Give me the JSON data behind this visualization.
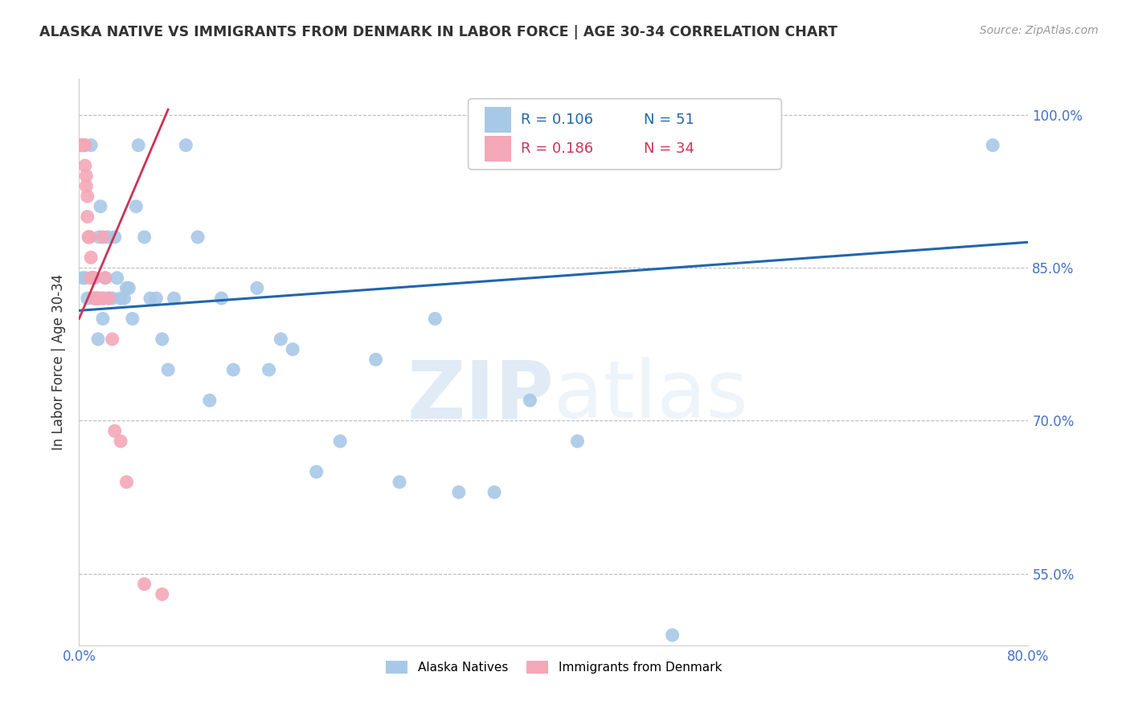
{
  "title": "ALASKA NATIVE VS IMMIGRANTS FROM DENMARK IN LABOR FORCE | AGE 30-34 CORRELATION CHART",
  "source": "Source: ZipAtlas.com",
  "xlabel": "",
  "ylabel": "In Labor Force | Age 30-34",
  "r_blue": 0.106,
  "n_blue": 51,
  "r_pink": 0.186,
  "n_pink": 34,
  "blue_color": "#A8C8E8",
  "pink_color": "#F4A8B8",
  "blue_line_color": "#2166AC",
  "pink_line_color": "#CC3355",
  "legend_blue_label": "Alaska Natives",
  "legend_pink_label": "Immigrants from Denmark",
  "xmin": 0.0,
  "xmax": 0.8,
  "ymin": 0.48,
  "ymax": 1.035,
  "yticks": [
    0.55,
    0.7,
    0.85,
    1.0
  ],
  "ytick_labels": [
    "55.0%",
    "70.0%",
    "85.0%",
    "100.0%"
  ],
  "xticks": [
    0.0,
    0.1,
    0.2,
    0.3,
    0.4,
    0.5,
    0.6,
    0.7,
    0.8
  ],
  "xtick_labels": [
    "0.0%",
    "",
    "",
    "",
    "",
    "",
    "",
    "",
    "80.0%"
  ],
  "blue_scatter_x": [
    0.003,
    0.005,
    0.007,
    0.01,
    0.012,
    0.013,
    0.015,
    0.016,
    0.017,
    0.018,
    0.02,
    0.021,
    0.022,
    0.024,
    0.025,
    0.028,
    0.03,
    0.032,
    0.035,
    0.038,
    0.04,
    0.042,
    0.045,
    0.048,
    0.05,
    0.055,
    0.06,
    0.065,
    0.07,
    0.075,
    0.08,
    0.09,
    0.1,
    0.11,
    0.12,
    0.13,
    0.15,
    0.16,
    0.17,
    0.18,
    0.2,
    0.22,
    0.25,
    0.27,
    0.3,
    0.32,
    0.35,
    0.38,
    0.42,
    0.5,
    0.77
  ],
  "blue_scatter_y": [
    0.84,
    0.84,
    0.82,
    0.97,
    0.82,
    0.84,
    0.82,
    0.78,
    0.88,
    0.91,
    0.8,
    0.82,
    0.84,
    0.88,
    0.82,
    0.82,
    0.88,
    0.84,
    0.82,
    0.82,
    0.83,
    0.83,
    0.8,
    0.91,
    0.97,
    0.88,
    0.82,
    0.82,
    0.78,
    0.75,
    0.82,
    0.97,
    0.88,
    0.72,
    0.82,
    0.75,
    0.83,
    0.75,
    0.78,
    0.77,
    0.65,
    0.68,
    0.76,
    0.64,
    0.8,
    0.63,
    0.63,
    0.72,
    0.68,
    0.49,
    0.97
  ],
  "pink_scatter_x": [
    0.001,
    0.001,
    0.002,
    0.003,
    0.004,
    0.004,
    0.005,
    0.005,
    0.006,
    0.006,
    0.007,
    0.007,
    0.008,
    0.008,
    0.009,
    0.01,
    0.01,
    0.011,
    0.012,
    0.013,
    0.014,
    0.015,
    0.016,
    0.018,
    0.02,
    0.02,
    0.022,
    0.025,
    0.028,
    0.03,
    0.035,
    0.04,
    0.055,
    0.07
  ],
  "pink_scatter_y": [
    0.97,
    0.97,
    0.97,
    0.97,
    0.97,
    0.97,
    0.97,
    0.95,
    0.94,
    0.93,
    0.92,
    0.9,
    0.88,
    0.88,
    0.88,
    0.86,
    0.84,
    0.84,
    0.84,
    0.82,
    0.82,
    0.82,
    0.82,
    0.82,
    0.82,
    0.88,
    0.84,
    0.82,
    0.78,
    0.69,
    0.68,
    0.64,
    0.54,
    0.53
  ],
  "blue_trend_x": [
    0.0,
    0.8
  ],
  "blue_trend_y": [
    0.808,
    0.875
  ],
  "pink_trend_x": [
    0.0,
    0.075
  ],
  "pink_trend_y": [
    0.8,
    1.005
  ],
  "watermark_zip": "ZIP",
  "watermark_atlas": "atlas",
  "title_color": "#333333",
  "axis_color": "#4472C4",
  "grid_color": "#BBBBBB"
}
